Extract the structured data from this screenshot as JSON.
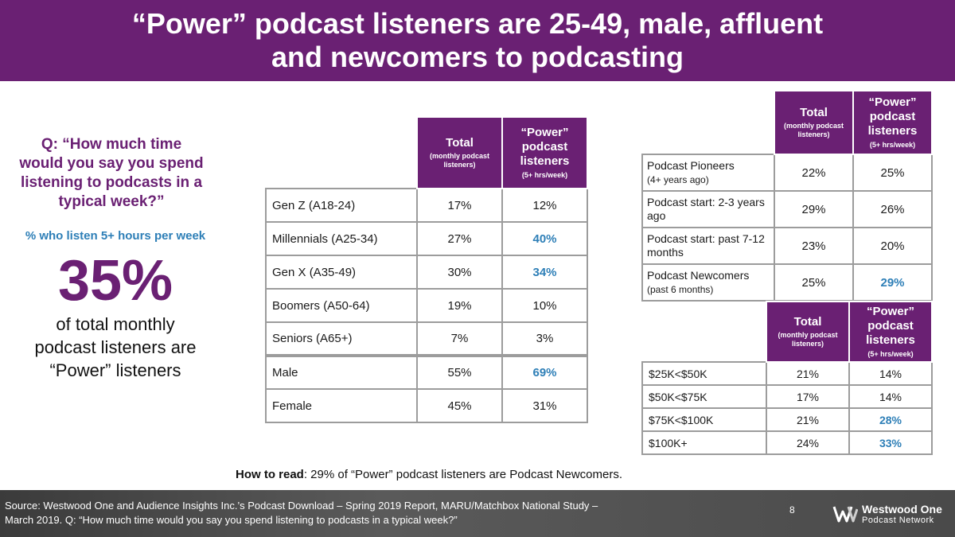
{
  "title": {
    "line1": "“Power” podcast listeners are 25-49, male, affluent",
    "line2": "and newcomers to podcasting"
  },
  "left": {
    "question_lines": [
      "Q: “How much time",
      "would you say you spend",
      "listening to podcasts in a",
      "typical week?”"
    ],
    "subtitle": "%  who listen 5+ hours per week",
    "big_percent": "35%",
    "description_lines": [
      "of total monthly",
      "podcast listeners are",
      "“Power” listeners"
    ]
  },
  "headers": {
    "total": "Total",
    "total_sub": "(monthly podcast listeners)",
    "power": "“Power” podcast listeners",
    "power_sub": "(5+ hrs/week)"
  },
  "generation_table": {
    "rows": [
      {
        "label": "Gen Z (A18-24)",
        "total": "17%",
        "power": "12%"
      },
      {
        "label": "Millennials (A25-34)",
        "total": "27%",
        "power": "40%"
      },
      {
        "label": "Gen X (A35-49)",
        "total": "30%",
        "power": "34%"
      },
      {
        "label": "Boomers (A50-64)",
        "total": "19%",
        "power": "10%"
      },
      {
        "label": "Seniors (A65+)",
        "total": "7%",
        "power": "3%"
      },
      {
        "label": "Male",
        "total": "55%",
        "power": "69%"
      },
      {
        "label": "Female",
        "total": "45%",
        "power": "31%"
      }
    ]
  },
  "tenure_table": {
    "rows": [
      {
        "label": "Podcast Pioneers",
        "note": "(4+ years ago)",
        "total": "22%",
        "power": "25%"
      },
      {
        "label": "Podcast start: 2-3 years ago",
        "note": "",
        "total": "29%",
        "power": "26%"
      },
      {
        "label": "Podcast start: past 7-12 months",
        "note": "",
        "total": "23%",
        "power": "20%"
      },
      {
        "label": "Podcast Newcomers",
        "note": "(past 6 months)",
        "total": "25%",
        "power": "29%"
      }
    ]
  },
  "income_table": {
    "rows": [
      {
        "label": "$25K<$50K",
        "total": "21%",
        "power": "14%"
      },
      {
        "label": "$50K<$75K",
        "total": "17%",
        "power": "14%"
      },
      {
        "label": "$75K<$100K",
        "total": "21%",
        "power": "28%"
      },
      {
        "label": "$100K+",
        "total": "24%",
        "power": "33%"
      }
    ]
  },
  "how_to_read": {
    "label": "How to read",
    "text": ": 29% of “Power” podcast listeners are Podcast Newcomers."
  },
  "footer": {
    "source_line1": "Source: Westwood One and Audience Insights Inc.’s Podcast Download – Spring 2019 Report, MARU/Matchbox National Study –",
    "source_line2": "March 2019. Q: “How much time would you say you spend listening to podcasts in a typical week?”",
    "page_number": "8",
    "logo_name": "Westwood One",
    "logo_sub": "Podcast Network"
  },
  "colors": {
    "brand_purple": "#6a2073",
    "highlight_blue": "#2e7fb7",
    "border_gray": "#9c9c9c"
  }
}
